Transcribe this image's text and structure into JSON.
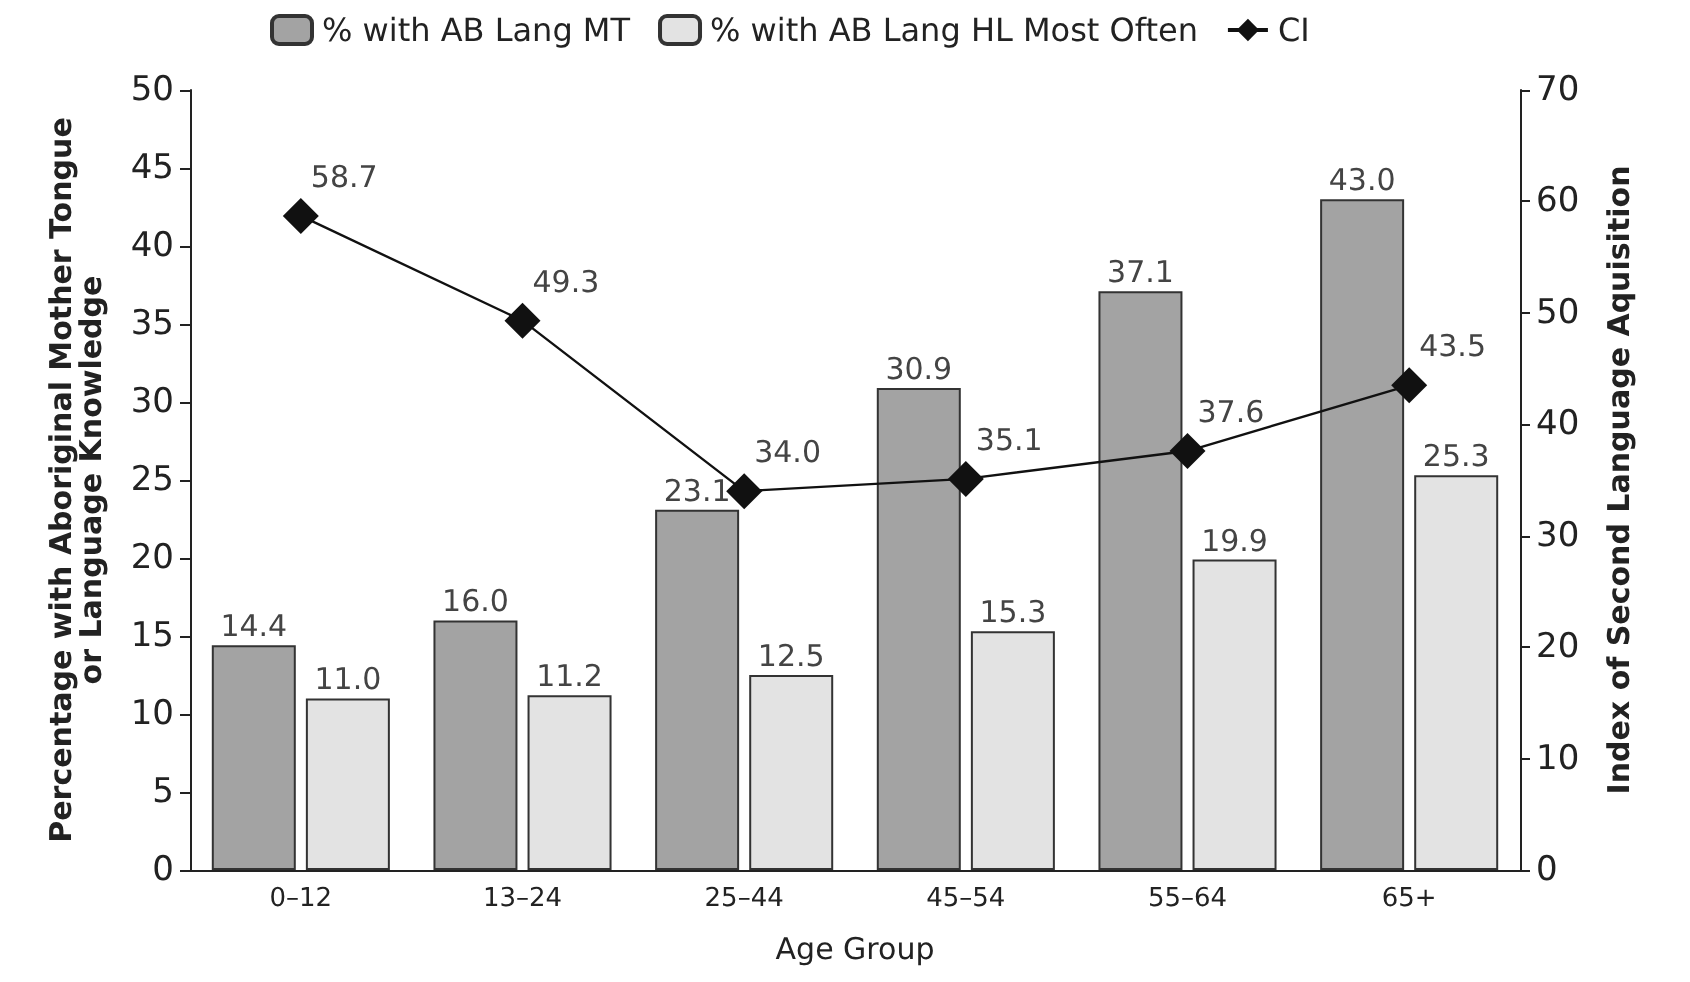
{
  "chart_data": {
    "type": "bar",
    "xlabel": "Age Group",
    "ylabel": "Percentage with Aboriginal Mother Tongue\nor Language Knowledge",
    "y2label": "Index of Second Language Aquisition",
    "categories": [
      "0–12",
      "13–24",
      "25–44",
      "45–54",
      "55–64",
      "65+"
    ],
    "series": [
      {
        "name": "% with AB Lang MT",
        "color": "#a3a3a3",
        "values": [
          14.4,
          16.0,
          23.1,
          30.9,
          37.1,
          43.0
        ],
        "value_labels": [
          "14.4",
          "16.0",
          "23.1",
          "30.9",
          "37.1",
          "43.0"
        ]
      },
      {
        "name": "% with AB Lang HL Most Often",
        "color": "#e3e3e3",
        "values": [
          11.0,
          11.2,
          12.5,
          15.3,
          19.9,
          25.3
        ],
        "value_labels": [
          "11.0",
          "11.2",
          "12.5",
          "15.3",
          "19.9",
          "25.3"
        ]
      },
      {
        "name": "CI",
        "type": "line",
        "axis": "y2",
        "color": "#111111",
        "marker": "diamond",
        "values": [
          58.7,
          49.3,
          34.0,
          35.1,
          37.6,
          43.5
        ],
        "value_labels": [
          "58.7",
          "49.3",
          "34.0",
          "35.1",
          "37.6",
          "43.5"
        ]
      }
    ],
    "ylim": [
      0,
      50
    ],
    "yticks": [
      0,
      5,
      10,
      15,
      20,
      25,
      30,
      35,
      40,
      45,
      50
    ],
    "y2lim": [
      0,
      70
    ],
    "y2ticks": [
      0,
      10,
      20,
      30,
      40,
      50,
      60,
      70
    ],
    "grid": false,
    "legend": "top"
  }
}
